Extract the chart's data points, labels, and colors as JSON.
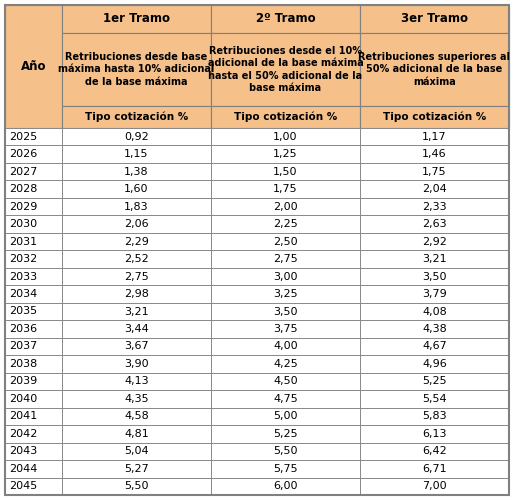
{
  "col1_header": "1er Tramo",
  "col2_header": "2º Tramo",
  "col3_header": "3er Tramo",
  "ano_label": "Año",
  "desc1": "Retribuciones desde base\nmáxima hasta 10% adicional\nde la base máxima",
  "desc2": "Retribuciones desde el 10%\nadicional de la base máxima\nhasta el 50% adicional de la\nbase máxima",
  "desc3": "Retribuciones superiores al\n50% adicional de la base\nmáxima",
  "tipo": "Tipo cotización %",
  "years": [
    2025,
    2026,
    2027,
    2028,
    2029,
    2030,
    2031,
    2032,
    2033,
    2034,
    2035,
    2036,
    2037,
    2038,
    2039,
    2040,
    2041,
    2042,
    2043,
    2044,
    2045
  ],
  "tramo1": [
    "0,92",
    "1,15",
    "1,38",
    "1,60",
    "1,83",
    "2,06",
    "2,29",
    "2,52",
    "2,75",
    "2,98",
    "3,21",
    "3,44",
    "3,67",
    "3,90",
    "4,13",
    "4,35",
    "4,58",
    "4,81",
    "5,04",
    "5,27",
    "5,50"
  ],
  "tramo2": [
    "1,00",
    "1,25",
    "1,50",
    "1,75",
    "2,00",
    "2,25",
    "2,50",
    "2,75",
    "3,00",
    "3,25",
    "3,50",
    "3,75",
    "4,00",
    "4,25",
    "4,50",
    "4,75",
    "5,00",
    "5,25",
    "5,50",
    "5,75",
    "6,00"
  ],
  "tramo3": [
    "1,17",
    "1,46",
    "1,75",
    "2,04",
    "2,33",
    "2,63",
    "2,92",
    "3,21",
    "3,50",
    "3,79",
    "4,08",
    "4,38",
    "4,67",
    "4,96",
    "5,25",
    "5,54",
    "5,83",
    "6,13",
    "6,42",
    "6,71",
    "7,00"
  ],
  "header_bg": "#F5C08A",
  "white": "#FFFFFF",
  "border": "#808080",
  "text_color": "#000000",
  "bold_text": "#000000"
}
